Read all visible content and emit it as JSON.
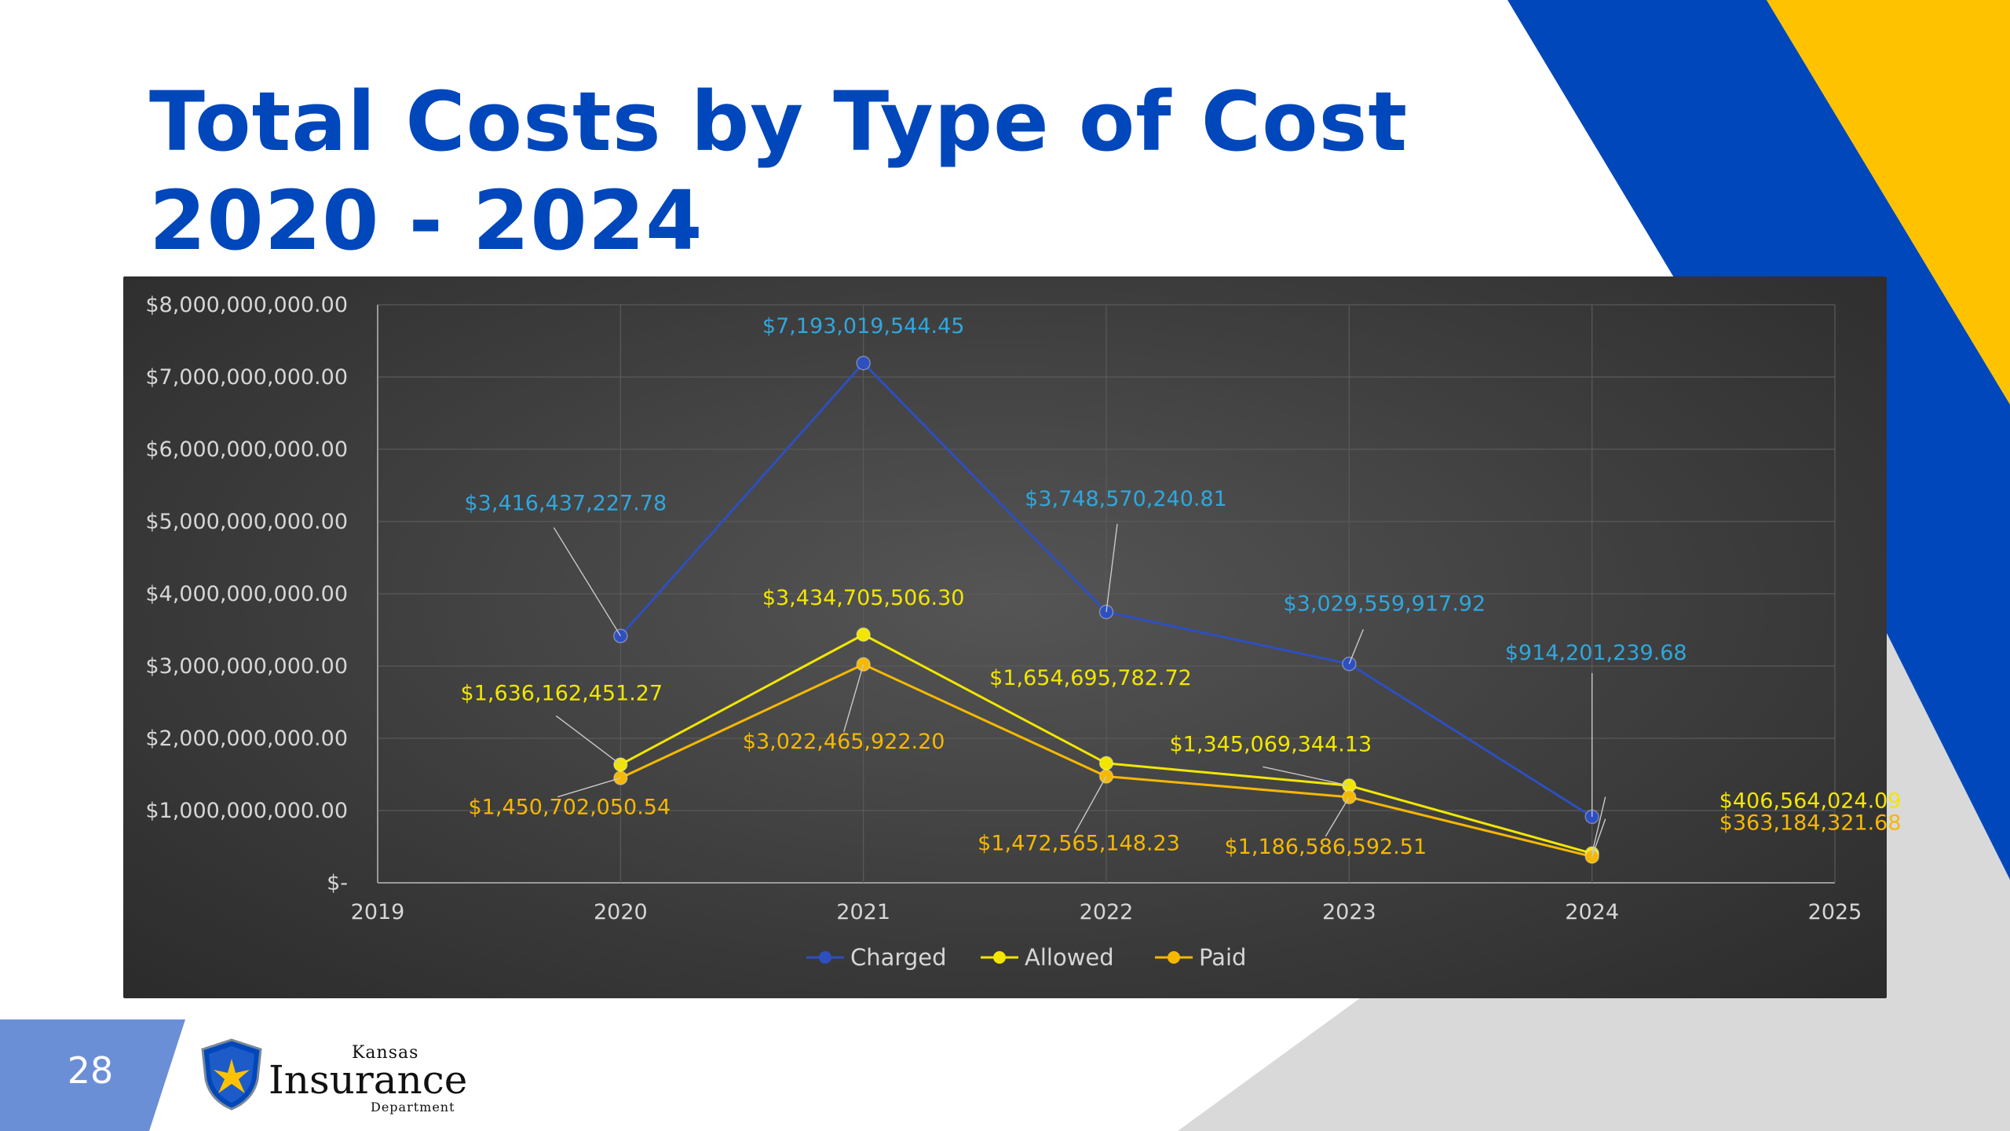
{
  "slide": {
    "title_line1": "Total Costs by Type of Cost",
    "title_line2": "2020 - 2024",
    "page_number": "28",
    "logo": {
      "word1": "Kansas",
      "word2": "Insurance",
      "word3": "Department",
      "icon": "shield-icon"
    }
  },
  "colors": {
    "title": "#0047BB",
    "accent_blue": "#0047BB",
    "accent_yellow": "#FFC200",
    "accent_gray": "#D9D9D9",
    "page_tab": "#6B8FD6",
    "charged": "#2E4FBF",
    "allowed": "#F2E600",
    "paid": "#F5B800",
    "charged_label": "#2FA7DE"
  },
  "chart_data": {
    "type": "scatter",
    "x_ticks": [
      "2019",
      "2020",
      "2021",
      "2022",
      "2023",
      "2024",
      "2025"
    ],
    "xlim": [
      2019,
      2025
    ],
    "ylim": [
      0,
      8000000000
    ],
    "y_ticks": [
      {
        "value": 0,
        "label": "$-"
      },
      {
        "value": 1000000000,
        "label": "$1,000,000,000.00"
      },
      {
        "value": 2000000000,
        "label": "$2,000,000,000.00"
      },
      {
        "value": 3000000000,
        "label": "$3,000,000,000.00"
      },
      {
        "value": 4000000000,
        "label": "$4,000,000,000.00"
      },
      {
        "value": 5000000000,
        "label": "$5,000,000,000.00"
      },
      {
        "value": 6000000000,
        "label": "$6,000,000,000.00"
      },
      {
        "value": 7000000000,
        "label": "$7,000,000,000.00"
      },
      {
        "value": 8000000000,
        "label": "$8,000,000,000.00"
      }
    ],
    "grid": true,
    "legend_position": "bottom",
    "series": [
      {
        "name": "Charged",
        "color": "#2E4FBF",
        "label_color": "#2FA7DE",
        "points": [
          {
            "x": 2020,
            "y": 3416437227.78,
            "label": "$3,416,437,227.78"
          },
          {
            "x": 2021,
            "y": 7193019544.45,
            "label": "$7,193,019,544.45"
          },
          {
            "x": 2022,
            "y": 3748570240.81,
            "label": "$3,748,570,240.81"
          },
          {
            "x": 2023,
            "y": 3029559917.92,
            "label": "$3,029,559,917.92"
          },
          {
            "x": 2024,
            "y": 914201239.68,
            "label": "$914,201,239.68"
          }
        ]
      },
      {
        "name": "Allowed",
        "color": "#F2E600",
        "label_color": "#F2E600",
        "points": [
          {
            "x": 2020,
            "y": 1636162451.27,
            "label": "$1,636,162,451.27"
          },
          {
            "x": 2021,
            "y": 3434705506.3,
            "label": "$3,434,705,506.30"
          },
          {
            "x": 2022,
            "y": 1654695782.72,
            "label": "$1,654,695,782.72"
          },
          {
            "x": 2023,
            "y": 1345069344.13,
            "label": "$1,345,069,344.13"
          },
          {
            "x": 2024,
            "y": 406564024.09,
            "label": "$406,564,024.09"
          }
        ]
      },
      {
        "name": "Paid",
        "color": "#F5B800",
        "label_color": "#F5B800",
        "points": [
          {
            "x": 2020,
            "y": 1450702050.54,
            "label": "$1,450,702,050.54"
          },
          {
            "x": 2021,
            "y": 3022465922.2,
            "label": "$3,022,465,922.20"
          },
          {
            "x": 2022,
            "y": 1472565148.23,
            "label": "$1,472,565,148.23"
          },
          {
            "x": 2023,
            "y": 1186586592.51,
            "label": "$1,186,586,592.51"
          },
          {
            "x": 2024,
            "y": 363184321.68,
            "label": "$363,184,321.68"
          }
        ]
      }
    ]
  }
}
